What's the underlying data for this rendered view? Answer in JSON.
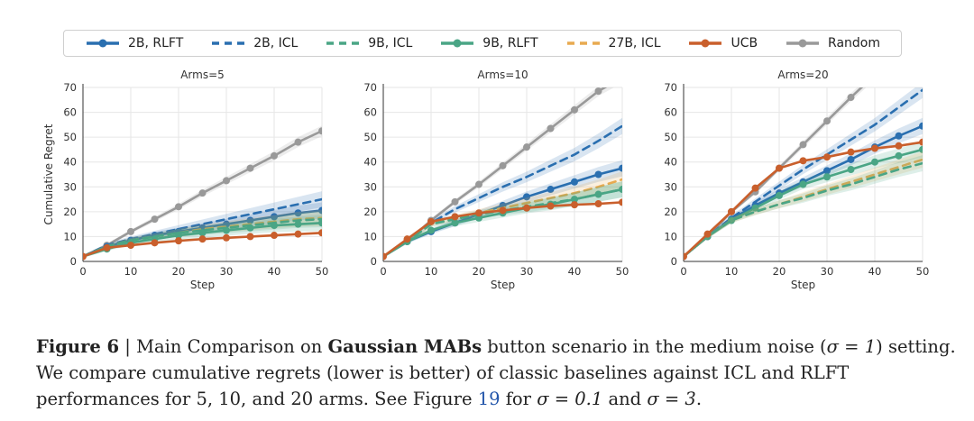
{
  "legend": [
    {
      "name": "2B, RLFT",
      "color": "#2a6fb0",
      "dash": false,
      "marker": true
    },
    {
      "name": "2B, ICL",
      "color": "#2a6fb0",
      "dash": true,
      "marker": false
    },
    {
      "name": "9B, ICL",
      "color": "#4aa585",
      "dash": true,
      "marker": false
    },
    {
      "name": "9B, RLFT",
      "color": "#4aa585",
      "dash": false,
      "marker": true
    },
    {
      "name": "27B, ICL",
      "color": "#e8aa50",
      "dash": true,
      "marker": false
    },
    {
      "name": "UCB",
      "color": "#c95f2c",
      "dash": false,
      "marker": true
    },
    {
      "name": "Random",
      "color": "#999999",
      "dash": false,
      "marker": true
    }
  ],
  "chart_data": [
    {
      "type": "line",
      "title": "Arms=5",
      "xlabel": "Step",
      "ylabel": "Cumulative Regret",
      "xlim": [
        0,
        50
      ],
      "ylim": [
        0,
        70
      ],
      "xticks": [
        0,
        10,
        20,
        30,
        40,
        50
      ],
      "yticks": [
        0,
        10,
        20,
        30,
        40,
        50,
        60,
        70
      ],
      "grid": true,
      "series": [
        {
          "name": "Random",
          "x": [
            0,
            5,
            10,
            15,
            20,
            25,
            30,
            35,
            40,
            45,
            50
          ],
          "y": [
            2,
            6.5,
            12,
            17,
            22,
            27.5,
            32.5,
            37.5,
            42.5,
            48,
            52.5
          ]
        },
        {
          "name": "2B, ICL",
          "x": [
            0,
            5,
            10,
            15,
            20,
            25,
            30,
            35,
            40,
            45,
            50
          ],
          "y": [
            2,
            6.5,
            9,
            11,
            13,
            15,
            17,
            19,
            21,
            23,
            25
          ]
        },
        {
          "name": "2B, RLFT",
          "x": [
            0,
            5,
            10,
            15,
            20,
            25,
            30,
            35,
            40,
            45,
            50
          ],
          "y": [
            2,
            6,
            8.5,
            10.5,
            12,
            13.5,
            15,
            16.5,
            18,
            19.5,
            20.5
          ]
        },
        {
          "name": "27B, ICL",
          "x": [
            0,
            5,
            10,
            15,
            20,
            25,
            30,
            35,
            40,
            45,
            50
          ],
          "y": [
            2,
            6,
            8.5,
            10,
            11.5,
            13,
            14,
            15,
            16,
            17,
            17.5
          ]
        },
        {
          "name": "9B, ICL",
          "x": [
            0,
            5,
            10,
            15,
            20,
            25,
            30,
            35,
            40,
            45,
            50
          ],
          "y": [
            2,
            6,
            8.5,
            10,
            11.5,
            12.5,
            13.5,
            14.5,
            15.5,
            16.5,
            17
          ]
        },
        {
          "name": "9B, RLFT",
          "x": [
            0,
            5,
            10,
            15,
            20,
            25,
            30,
            35,
            40,
            45,
            50
          ],
          "y": [
            2,
            5,
            7.5,
            9,
            10.5,
            11.5,
            12.5,
            13.5,
            14.5,
            15,
            15.5
          ]
        },
        {
          "name": "UCB",
          "x": [
            0,
            5,
            10,
            15,
            20,
            25,
            30,
            35,
            40,
            45,
            50
          ],
          "y": [
            2,
            5.5,
            6.5,
            7.5,
            8.3,
            9,
            9.5,
            10,
            10.5,
            11,
            11.5
          ]
        }
      ]
    },
    {
      "type": "line",
      "title": "Arms=10",
      "xlabel": "Step",
      "ylabel": "",
      "xlim": [
        0,
        50
      ],
      "ylim": [
        0,
        70
      ],
      "xticks": [
        0,
        10,
        20,
        30,
        40,
        50
      ],
      "yticks": [
        0,
        10,
        20,
        30,
        40,
        50,
        60,
        70
      ],
      "grid": true,
      "series": [
        {
          "name": "Random",
          "x": [
            0,
            5,
            10,
            15,
            20,
            25,
            30,
            35,
            40,
            45,
            50
          ],
          "y": [
            2,
            8,
            16.5,
            24,
            31,
            38.5,
            46,
            53.5,
            61,
            68.5,
            74
          ]
        },
        {
          "name": "2B, ICL",
          "x": [
            0,
            5,
            10,
            15,
            20,
            25,
            30,
            35,
            40,
            45,
            50
          ],
          "y": [
            2,
            8,
            15.5,
            21,
            25.5,
            30,
            34,
            38.5,
            43,
            48.5,
            54.5
          ]
        },
        {
          "name": "2B, RLFT",
          "x": [
            0,
            5,
            10,
            15,
            20,
            25,
            30,
            35,
            40,
            45,
            50
          ],
          "y": [
            2,
            8,
            12,
            15.5,
            19,
            22.5,
            26,
            29,
            32,
            35,
            37.5
          ]
        },
        {
          "name": "27B, ICL",
          "x": [
            0,
            5,
            10,
            15,
            20,
            25,
            30,
            35,
            40,
            45,
            50
          ],
          "y": [
            2,
            8,
            15,
            17.5,
            19.5,
            21.5,
            23.5,
            25.5,
            27.5,
            30,
            33
          ]
        },
        {
          "name": "9B, ICL",
          "x": [
            0,
            5,
            10,
            15,
            20,
            25,
            30,
            35,
            40,
            45,
            50
          ],
          "y": [
            2,
            8,
            15,
            17,
            19,
            20.5,
            22,
            23.5,
            25,
            27,
            29
          ]
        },
        {
          "name": "9B, RLFT",
          "x": [
            0,
            5,
            10,
            15,
            20,
            25,
            30,
            35,
            40,
            45,
            50
          ],
          "y": [
            2,
            8,
            12.5,
            15.5,
            17.5,
            19.5,
            21.5,
            23,
            25,
            27,
            29
          ]
        },
        {
          "name": "UCB",
          "x": [
            0,
            5,
            10,
            15,
            20,
            25,
            30,
            35,
            40,
            45,
            50
          ],
          "y": [
            2,
            9,
            16,
            18,
            19.5,
            20.5,
            21.5,
            22.3,
            22.8,
            23.2,
            23.8
          ]
        }
      ]
    },
    {
      "type": "line",
      "title": "Arms=20",
      "xlabel": "Step",
      "ylabel": "",
      "xlim": [
        0,
        50
      ],
      "ylim": [
        0,
        70
      ],
      "xticks": [
        0,
        10,
        20,
        30,
        40,
        50
      ],
      "yticks": [
        0,
        10,
        20,
        30,
        40,
        50,
        60,
        70
      ],
      "grid": true,
      "series": [
        {
          "name": "Random",
          "x": [
            0,
            5,
            10,
            15,
            20,
            25,
            30,
            35,
            40
          ],
          "y": [
            2,
            10,
            20,
            28,
            37.5,
            47,
            56.5,
            66,
            75
          ]
        },
        {
          "name": "2B, ICL",
          "x": [
            0,
            5,
            10,
            15,
            20,
            25,
            30,
            35,
            40,
            45,
            50
          ],
          "y": [
            2,
            10,
            17.5,
            24,
            30.5,
            37,
            43,
            49,
            55,
            62,
            69
          ]
        },
        {
          "name": "2B, RLFT",
          "x": [
            0,
            5,
            10,
            15,
            20,
            25,
            30,
            35,
            40,
            45,
            50
          ],
          "y": [
            2,
            10,
            17,
            22.5,
            27.5,
            32,
            36.5,
            41,
            46,
            50.5,
            54.5
          ]
        },
        {
          "name": "9B, RLFT",
          "x": [
            0,
            5,
            10,
            15,
            20,
            25,
            30,
            35,
            40,
            45,
            50
          ],
          "y": [
            2,
            10,
            16.5,
            21.5,
            26.5,
            31,
            34,
            37,
            40,
            42.5,
            45
          ]
        },
        {
          "name": "27B, ICL",
          "x": [
            0,
            5,
            10,
            15,
            20,
            25,
            30,
            35,
            40,
            45,
            50
          ],
          "y": [
            2,
            10,
            16.5,
            20,
            23,
            26,
            29,
            32,
            35,
            38,
            41
          ]
        },
        {
          "name": "9B, ICL",
          "x": [
            0,
            5,
            10,
            15,
            20,
            25,
            30,
            35,
            40,
            45,
            50
          ],
          "y": [
            2,
            10,
            16.5,
            20,
            23,
            25.5,
            28.5,
            31,
            34,
            37,
            39.5
          ]
        },
        {
          "name": "UCB",
          "x": [
            0,
            5,
            10,
            15,
            20,
            25,
            30,
            35,
            40,
            45,
            50
          ],
          "y": [
            2,
            11,
            20,
            29.5,
            37.5,
            40.5,
            42,
            44,
            45.5,
            46.5,
            48
          ]
        }
      ]
    }
  ],
  "caption": {
    "fig_label": "Figure 6",
    "sep": " | Main Comparison on ",
    "bold": "Gaussian MABs",
    "text1": " button scenario in the medium noise (",
    "sigma_eq": "σ = 1",
    "text2": ") setting. We compare cumulative regrets (lower is better) of classic baselines against ICL and RLFT performances for 5, 10, and 20 arms. See Figure ",
    "ref": "19",
    "text3": " for ",
    "s1": "σ = 0.1",
    "and": " and ",
    "s2": "σ = 3",
    "end": "."
  }
}
